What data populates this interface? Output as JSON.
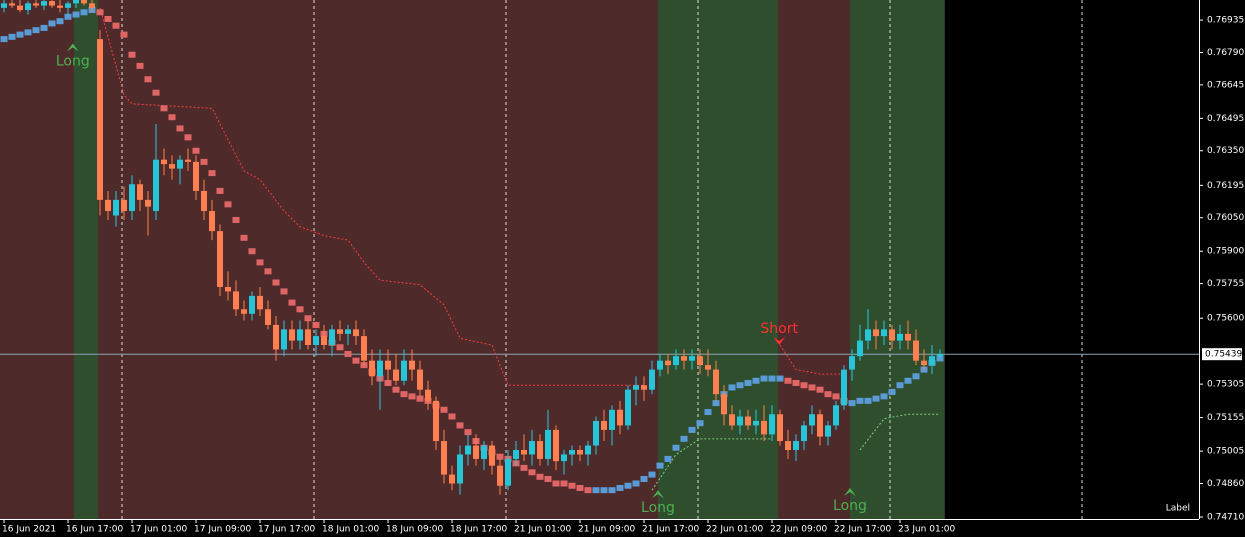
{
  "chart_data": {
    "type": "candlestick",
    "xlim": [
      -0.5,
      149.375
    ],
    "ylim": [
      0.74701,
      0.77025
    ],
    "yticks": [
      {
        "value": 0.76935,
        "label": "0.76935"
      },
      {
        "value": 0.7679,
        "label": "0.76790"
      },
      {
        "value": 0.76645,
        "label": "0.76645"
      },
      {
        "value": 0.76495,
        "label": "0.76495"
      },
      {
        "value": 0.7635,
        "label": "0.76350"
      },
      {
        "value": 0.76195,
        "label": "0.76195"
      },
      {
        "value": 0.7605,
        "label": "0.76050"
      },
      {
        "value": 0.759,
        "label": "0.75900"
      },
      {
        "value": 0.75755,
        "label": "0.75755"
      },
      {
        "value": 0.756,
        "label": "0.75600"
      },
      {
        "value": 0.75305,
        "label": "0.75305"
      },
      {
        "value": 0.75155,
        "label": "0.75155"
      },
      {
        "value": 0.75005,
        "label": "0.75005"
      },
      {
        "value": 0.7486,
        "label": "0.74860"
      },
      {
        "value": 0.7471,
        "label": "0.74710"
      }
    ],
    "xticks": [
      {
        "value": 0,
        "label": "16 Jun 2021"
      },
      {
        "value": 8,
        "label": "16 Jun 17:00"
      },
      {
        "value": 16,
        "label": "17 Jun 01:00"
      },
      {
        "value": 24,
        "label": "17 Jun 09:00"
      },
      {
        "value": 32,
        "label": "17 Jun 17:00"
      },
      {
        "value": 40,
        "label": "18 Jun 01:00"
      },
      {
        "value": 48,
        "label": "18 Jun 09:00"
      },
      {
        "value": 56,
        "label": "18 Jun 17:00"
      },
      {
        "value": 64,
        "label": "21 Jun 01:00"
      },
      {
        "value": 72,
        "label": "21 Jun 09:00"
      },
      {
        "value": 80,
        "label": "21 Jun 17:00"
      },
      {
        "value": 88,
        "label": "22 Jun 01:00"
      },
      {
        "value": 96,
        "label": "22 Jun 09:00"
      },
      {
        "value": 104,
        "label": "22 Jun 17:00"
      },
      {
        "value": 112,
        "label": "23 Jun 01:00"
      }
    ],
    "separators": [
      14.75,
      38.75,
      62.75,
      86.75,
      110.75,
      134.75
    ],
    "zones": [
      {
        "from": -0.5,
        "to": 8.75,
        "color": "#4f2a2a"
      },
      {
        "from": 8.75,
        "to": 11.75,
        "color": "#2f4e2e"
      },
      {
        "from": 11.75,
        "to": 81.75,
        "color": "#4f2a2a"
      },
      {
        "from": 81.75,
        "to": 96.75,
        "color": "#2f4e2e"
      },
      {
        "from": 96.75,
        "to": 105.75,
        "color": "#4f2a2a"
      },
      {
        "from": 105.75,
        "to": 117.6,
        "color": "#2f4e2e"
      }
    ],
    "candle_up": "#26c6da",
    "candle_down": "#ff7f50",
    "candles": [
      [
        0.7699,
        0.7703,
        0.7697,
        0.7701
      ],
      [
        0.7701,
        0.7704,
        0.7699,
        0.77
      ],
      [
        0.77,
        0.7703,
        0.7697,
        0.7698
      ],
      [
        0.7698,
        0.7702,
        0.7696,
        0.7701
      ],
      [
        0.7701,
        0.7704,
        0.7699,
        0.77
      ],
      [
        0.77,
        0.7703,
        0.7698,
        0.7702
      ],
      [
        0.7702,
        0.7705,
        0.7699,
        0.77
      ],
      [
        0.77,
        0.7703,
        0.7697,
        0.7699
      ],
      [
        0.7699,
        0.7702,
        0.7696,
        0.7701
      ],
      [
        0.7701,
        0.7705,
        0.7699,
        0.7703
      ],
      [
        0.7703,
        0.7706,
        0.77,
        0.7701
      ],
      [
        0.7701,
        0.7704,
        0.7697,
        0.7699
      ],
      [
        0.7685,
        0.7689,
        0.7606,
        0.7613
      ],
      [
        0.7613,
        0.7617,
        0.7604,
        0.7608
      ],
      [
        0.7606,
        0.7617,
        0.7601,
        0.7613
      ],
      [
        0.7613,
        0.7619,
        0.7604,
        0.7608
      ],
      [
        0.7608,
        0.7624,
        0.7604,
        0.762
      ],
      [
        0.762,
        0.7622,
        0.7608,
        0.7613
      ],
      [
        0.7613,
        0.7617,
        0.7597,
        0.761
      ],
      [
        0.7608,
        0.7647,
        0.7604,
        0.7631
      ],
      [
        0.7631,
        0.7636,
        0.7624,
        0.7629
      ],
      [
        0.7629,
        0.7633,
        0.7622,
        0.7627
      ],
      [
        0.7627,
        0.7633,
        0.762,
        0.7631
      ],
      [
        0.7631,
        0.7636,
        0.7626,
        0.763
      ],
      [
        0.763,
        0.7633,
        0.7613,
        0.7617
      ],
      [
        0.7617,
        0.7622,
        0.7604,
        0.7608
      ],
      [
        0.7608,
        0.7613,
        0.7595,
        0.7599
      ],
      [
        0.7599,
        0.7602,
        0.757,
        0.7574
      ],
      [
        0.7574,
        0.7581,
        0.7568,
        0.7572
      ],
      [
        0.7572,
        0.7577,
        0.7561,
        0.7564
      ],
      [
        0.7564,
        0.7568,
        0.7559,
        0.7562
      ],
      [
        0.7562,
        0.7572,
        0.7559,
        0.757
      ],
      [
        0.757,
        0.7574,
        0.7561,
        0.7564
      ],
      [
        0.7564,
        0.7568,
        0.7555,
        0.7557
      ],
      [
        0.7557,
        0.7561,
        0.7541,
        0.7546
      ],
      [
        0.7546,
        0.7559,
        0.7543,
        0.7555
      ],
      [
        0.7555,
        0.7559,
        0.7546,
        0.755
      ],
      [
        0.755,
        0.7559,
        0.7546,
        0.7555
      ],
      [
        0.7555,
        0.7559,
        0.7546,
        0.7548
      ],
      [
        0.7548,
        0.7555,
        0.7543,
        0.7552
      ],
      [
        0.7552,
        0.7557,
        0.7546,
        0.7548
      ],
      [
        0.7548,
        0.7557,
        0.7543,
        0.7555
      ],
      [
        0.7555,
        0.7559,
        0.755,
        0.7553
      ],
      [
        0.7553,
        0.7557,
        0.7548,
        0.7555
      ],
      [
        0.7555,
        0.7559,
        0.7548,
        0.7552
      ],
      [
        0.7552,
        0.7555,
        0.7539,
        0.7541
      ],
      [
        0.7541,
        0.7546,
        0.753,
        0.7534
      ],
      [
        0.7534,
        0.7546,
        0.7519,
        0.7541
      ],
      [
        0.7541,
        0.7546,
        0.7532,
        0.7537
      ],
      [
        0.7537,
        0.7544,
        0.753,
        0.7532
      ],
      [
        0.7532,
        0.7546,
        0.753,
        0.7541
      ],
      [
        0.7541,
        0.7546,
        0.7532,
        0.7537
      ],
      [
        0.7537,
        0.7541,
        0.7525,
        0.7528
      ],
      [
        0.7528,
        0.7532,
        0.7519,
        0.7523
      ],
      [
        0.7523,
        0.7525,
        0.7501,
        0.7505
      ],
      [
        0.7505,
        0.751,
        0.7486,
        0.749
      ],
      [
        0.749,
        0.7494,
        0.7483,
        0.7486
      ],
      [
        0.7486,
        0.7503,
        0.7481,
        0.7499
      ],
      [
        0.7499,
        0.7508,
        0.7494,
        0.7503
      ],
      [
        0.7503,
        0.7508,
        0.7494,
        0.7497
      ],
      [
        0.7497,
        0.7505,
        0.7492,
        0.7503
      ],
      [
        0.7503,
        0.7505,
        0.749,
        0.7494
      ],
      [
        0.7494,
        0.7497,
        0.7481,
        0.7485
      ],
      [
        0.7485,
        0.7501,
        0.7483,
        0.7497
      ],
      [
        0.7497,
        0.7505,
        0.7494,
        0.7501
      ],
      [
        0.7501,
        0.7508,
        0.7496,
        0.7499
      ],
      [
        0.7499,
        0.751,
        0.7494,
        0.7505
      ],
      [
        0.7505,
        0.7508,
        0.7494,
        0.7497
      ],
      [
        0.7497,
        0.7519,
        0.7494,
        0.751
      ],
      [
        0.751,
        0.7512,
        0.7492,
        0.7496
      ],
      [
        0.7496,
        0.7501,
        0.749,
        0.7499
      ],
      [
        0.7499,
        0.7503,
        0.7494,
        0.7501
      ],
      [
        0.7501,
        0.7503,
        0.7496,
        0.7499
      ],
      [
        0.7499,
        0.7505,
        0.7494,
        0.7503
      ],
      [
        0.7503,
        0.7516,
        0.7499,
        0.7514
      ],
      [
        0.7514,
        0.7519,
        0.7505,
        0.751
      ],
      [
        0.751,
        0.7521,
        0.7503,
        0.7519
      ],
      [
        0.7519,
        0.7523,
        0.7508,
        0.7512
      ],
      [
        0.7512,
        0.753,
        0.751,
        0.7528
      ],
      [
        0.7528,
        0.7534,
        0.7521,
        0.753
      ],
      [
        0.753,
        0.7534,
        0.7523,
        0.7528
      ],
      [
        0.7528,
        0.7541,
        0.7526,
        0.7537
      ],
      [
        0.7537,
        0.7544,
        0.7534,
        0.7541
      ],
      [
        0.7541,
        0.7544,
        0.7535,
        0.7539
      ],
      [
        0.7539,
        0.7546,
        0.7537,
        0.7543
      ],
      [
        0.7543,
        0.7546,
        0.7537,
        0.7541
      ],
      [
        0.7541,
        0.7546,
        0.7537,
        0.7543
      ],
      [
        0.7543,
        0.7546,
        0.7535,
        0.7539
      ],
      [
        0.7539,
        0.7546,
        0.7534,
        0.7537
      ],
      [
        0.7537,
        0.7541,
        0.7523,
        0.7526
      ],
      [
        0.7526,
        0.753,
        0.7512,
        0.7517
      ],
      [
        0.7517,
        0.7521,
        0.751,
        0.7512
      ],
      [
        0.7512,
        0.7519,
        0.7508,
        0.7516
      ],
      [
        0.7516,
        0.7519,
        0.751,
        0.7512
      ],
      [
        0.7512,
        0.7519,
        0.7508,
        0.7514
      ],
      [
        0.7514,
        0.7521,
        0.7505,
        0.7508
      ],
      [
        0.7508,
        0.7521,
        0.7505,
        0.7517
      ],
      [
        0.7517,
        0.7519,
        0.7503,
        0.7505
      ],
      [
        0.7505,
        0.751,
        0.7497,
        0.7501
      ],
      [
        0.7501,
        0.7508,
        0.7496,
        0.7505
      ],
      [
        0.7505,
        0.7514,
        0.7501,
        0.7512
      ],
      [
        0.7512,
        0.7521,
        0.7508,
        0.7517
      ],
      [
        0.7517,
        0.7519,
        0.7503,
        0.7507
      ],
      [
        0.7507,
        0.7514,
        0.7503,
        0.7512
      ],
      [
        0.7512,
        0.7523,
        0.751,
        0.7521
      ],
      [
        0.7521,
        0.7539,
        0.7519,
        0.7537
      ],
      [
        0.7537,
        0.7546,
        0.7532,
        0.7543
      ],
      [
        0.7543,
        0.7557,
        0.7541,
        0.755
      ],
      [
        0.755,
        0.7564,
        0.7546,
        0.7555
      ],
      [
        0.7555,
        0.7559,
        0.7546,
        0.7552
      ],
      [
        0.7552,
        0.7559,
        0.7548,
        0.7555
      ],
      [
        0.7555,
        0.7557,
        0.7546,
        0.755
      ],
      [
        0.755,
        0.7557,
        0.7546,
        0.7553
      ],
      [
        0.7553,
        0.7559,
        0.7546,
        0.755
      ],
      [
        0.755,
        0.7555,
        0.7539,
        0.7541
      ],
      [
        0.7541,
        0.7546,
        0.7537,
        0.7539
      ],
      [
        0.7539,
        0.7548,
        0.7535,
        0.7543
      ],
      [
        0.7543,
        0.7546,
        0.7541,
        0.7544
      ]
    ],
    "trend": [
      {
        "start": 0,
        "color": "#5b9bd5",
        "values": [
          0.7685,
          0.7686,
          0.7687,
          0.7688,
          0.7689,
          0.769,
          0.7692,
          0.7693,
          0.7695,
          0.7696,
          0.7697,
          0.7698
        ]
      },
      {
        "start": 12,
        "color": "#e06666",
        "values": [
          0.7697,
          0.7694,
          0.7691,
          0.7687,
          0.7678,
          0.7673,
          0.7667,
          0.7661,
          0.7654,
          0.765,
          0.7645,
          0.7641,
          0.7635,
          0.763,
          0.7625,
          0.7617,
          0.7611,
          0.7604,
          0.7596,
          0.759,
          0.7585,
          0.7581,
          0.7576,
          0.7572,
          0.7567,
          0.7564,
          0.756,
          0.7557,
          0.7553,
          0.7549,
          0.7547,
          0.7544,
          0.7541,
          0.7539,
          0.7536,
          0.7533,
          0.7531,
          0.7528,
          0.7526,
          0.7525,
          0.7524,
          0.7523,
          0.7521,
          0.7519,
          0.7516,
          0.7512,
          0.7509,
          0.7505,
          0.7502,
          0.75,
          0.7498,
          0.7497,
          0.7495,
          0.7493,
          0.7491,
          0.7489,
          0.7488,
          0.7486,
          0.7486,
          0.7485,
          0.7484,
          0.7483
        ]
      },
      {
        "start": 74,
        "color": "#5b9bd5",
        "values": [
          0.7483,
          0.7483,
          0.7483,
          0.7484,
          0.7485,
          0.7486,
          0.7488,
          0.749,
          0.7494,
          0.7497,
          0.7502,
          0.7506,
          0.751,
          0.7513,
          0.7518,
          0.7522,
          0.7526,
          0.7529,
          0.753,
          0.7531,
          0.7532,
          0.7533,
          0.7533,
          0.7533
        ]
      },
      {
        "start": 98,
        "color": "#e06666",
        "values": [
          0.7532,
          0.7531,
          0.753,
          0.7529,
          0.7528,
          0.7526,
          0.7525,
          0.7523
        ]
      },
      {
        "start": 106,
        "color": "#5b9bd5",
        "values": [
          0.7522,
          0.7523,
          0.7523,
          0.7524,
          0.7525,
          0.7527,
          0.753,
          0.7532,
          0.7534,
          0.7537,
          0.754,
          0.7542
        ]
      }
    ],
    "stops": [
      {
        "color": "#ff3b3b",
        "x": [
          12,
          15,
          16,
          26,
          30,
          32,
          35,
          37,
          40,
          43,
          45,
          47,
          52,
          55,
          57,
          61,
          63,
          80
        ],
        "values": [
          0.7699,
          0.766,
          0.7656,
          0.7654,
          0.7626,
          0.7622,
          0.7608,
          0.7601,
          0.7597,
          0.7595,
          0.7585,
          0.7577,
          0.7575,
          0.7566,
          0.7551,
          0.7548,
          0.753,
          0.753
        ]
      },
      {
        "color": "#ff3b3b",
        "x": [
          97,
          99,
          102,
          105
        ],
        "values": [
          0.7548,
          0.7537,
          0.7535,
          0.7535
        ]
      },
      {
        "color": "#7fcf7f",
        "x": [
          81,
          84,
          87,
          96
        ],
        "values": [
          0.7483,
          0.7499,
          0.7506,
          0.7506
        ]
      },
      {
        "color": "#7fcf7f",
        "x": [
          107,
          110,
          113,
          117
        ],
        "values": [
          0.7501,
          0.7515,
          0.7517,
          0.7517
        ]
      }
    ],
    "annotations": [
      {
        "text": "Long",
        "x": 8.6,
        "y": 0.7683,
        "color": "#4caf50",
        "direction": "up"
      },
      {
        "text": "Long",
        "x": 81.75,
        "y": 0.7483,
        "color": "#4caf50",
        "direction": "up"
      },
      {
        "text": "Short",
        "x": 96.9,
        "y": 0.7548,
        "color": "#ff3030",
        "direction": "down"
      },
      {
        "text": "Long",
        "x": 105.75,
        "y": 0.7484,
        "color": "#4caf50",
        "direction": "up"
      }
    ],
    "current_price": {
      "value": 0.75439,
      "label": "0.75439"
    },
    "corner_label": "Label"
  }
}
